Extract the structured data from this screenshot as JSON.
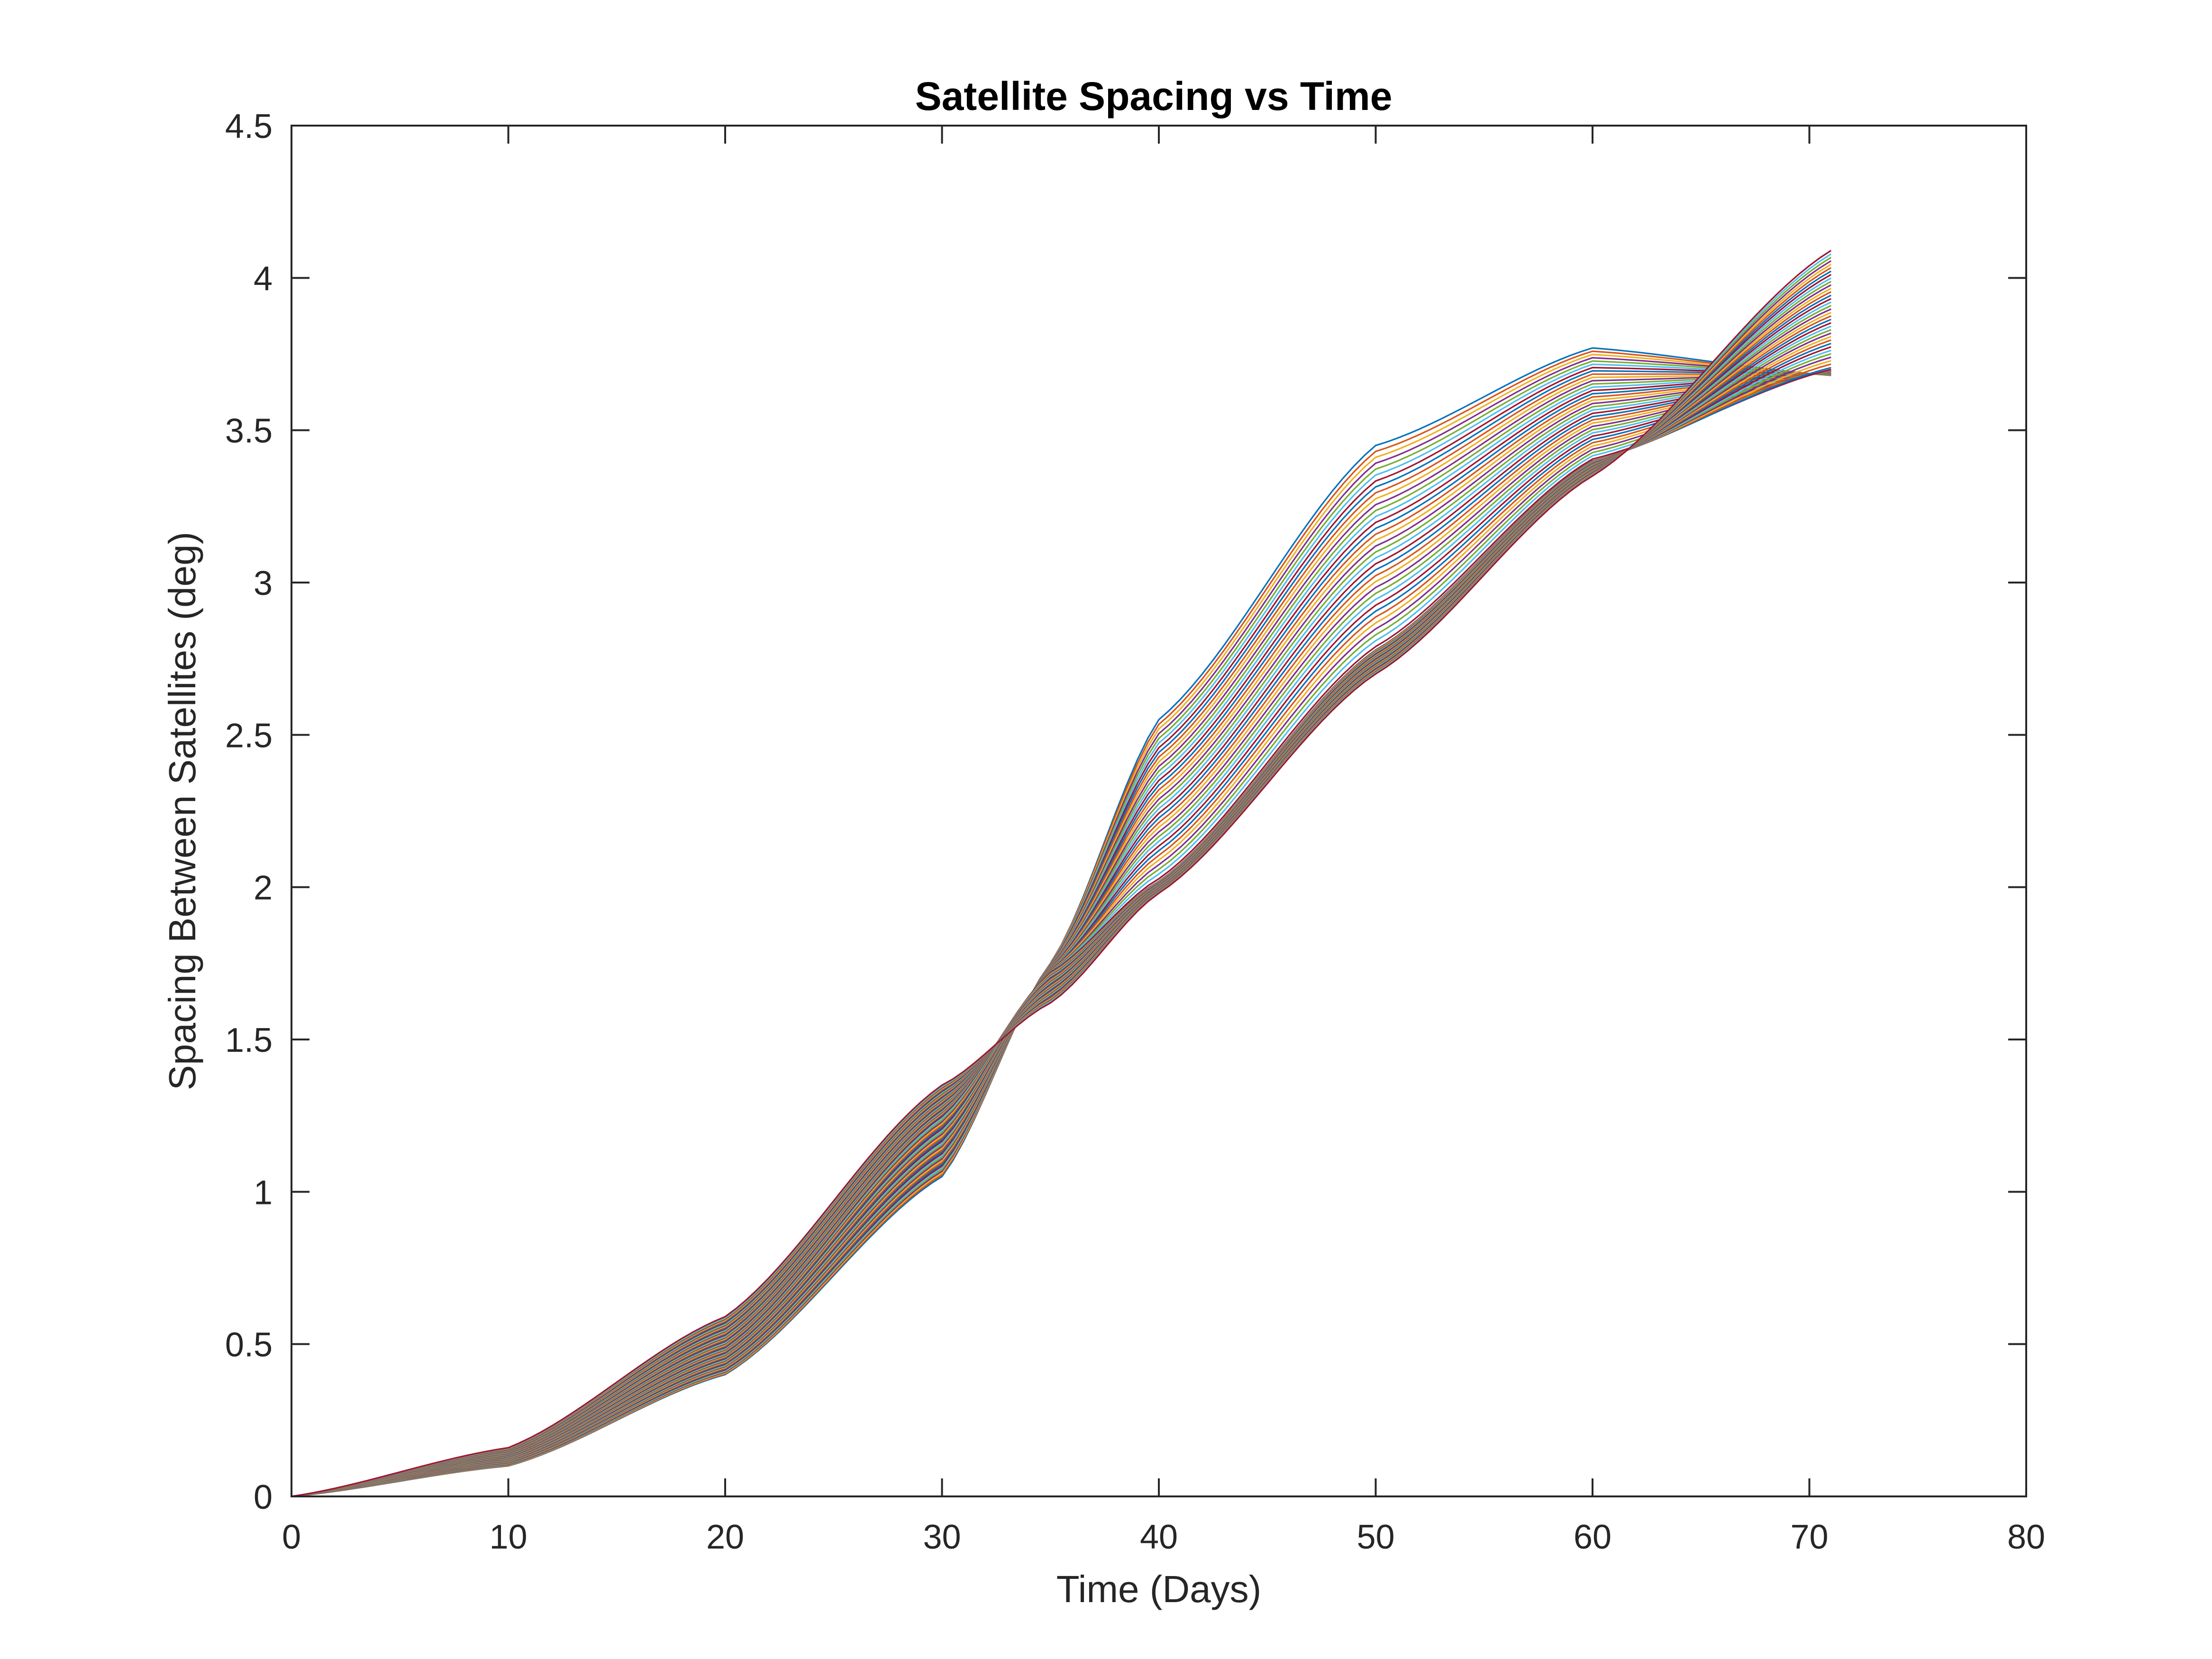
{
  "chart_data": {
    "type": "line",
    "title": "Satellite Spacing vs Time",
    "xlabel": "Time (Days)",
    "ylabel": "Spacing Between Satellites (deg)",
    "xlim": [
      0,
      80
    ],
    "ylim": [
      0,
      4.5
    ],
    "xticks": [
      "0",
      "10",
      "20",
      "30",
      "40",
      "50",
      "60",
      "70",
      "80"
    ],
    "yticks": [
      "0",
      "0.5",
      "1",
      "1.5",
      "2",
      "2.5",
      "3",
      "3.5",
      "4",
      "4.5"
    ],
    "grid": false,
    "legend": "none",
    "x_range_of_data": [
      0,
      71
    ],
    "series_count": 70,
    "series_family": [
      {
        "x": [
          0,
          10,
          20,
          30,
          35,
          40,
          50,
          60,
          71
        ],
        "y": [
          0,
          0.1,
          0.4,
          1.05,
          1.75,
          2.55,
          3.45,
          3.77,
          3.68
        ]
      },
      {
        "x": [
          0,
          10,
          20,
          30,
          35,
          40,
          50,
          60,
          71
        ],
        "y": [
          0,
          0.13,
          0.49,
          1.25,
          1.72,
          2.02,
          2.78,
          3.4,
          3.7
        ]
      },
      {
        "x": [
          0,
          10,
          20,
          30,
          35,
          40,
          50,
          60,
          71
        ],
        "y": [
          0,
          0.16,
          0.59,
          1.35,
          1.62,
          1.98,
          2.7,
          3.35,
          4.09
        ]
      }
    ],
    "colors": [
      "#0072BD",
      "#D95319",
      "#EDB120",
      "#7E2F8E",
      "#77AC30",
      "#4DBEEE",
      "#A2142F"
    ]
  }
}
